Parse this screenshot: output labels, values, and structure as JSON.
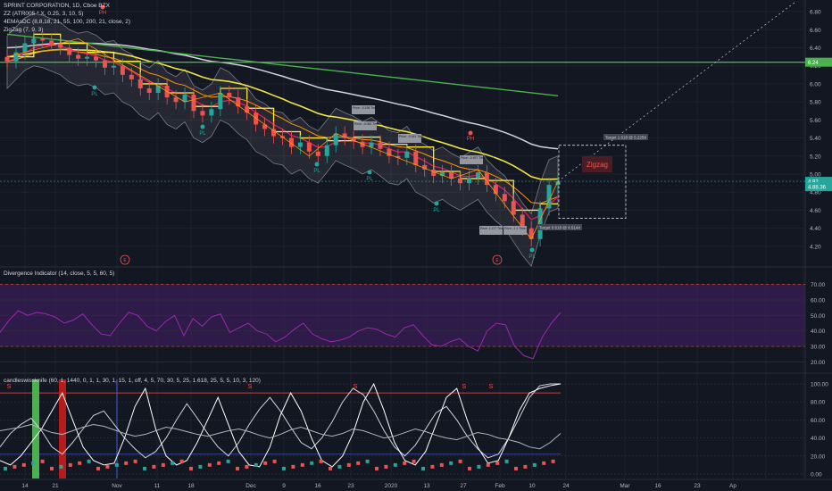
{
  "header": {
    "symbol_line": "SPRINT CORPORATION, 1D, Cboe BZX",
    "indicator_lines": [
      "ZZ (ATR005 * X, 0.25, 3, 10, 5)",
      "4EMAsDC (8,8,18, 21, 55, 100, 200, 21, close, 2)",
      "ZigZag (7, 9, 3)"
    ]
  },
  "divergence": {
    "title": "Divergence Indicator (14, close, 5, 5, 60, 5)"
  },
  "swiss": {
    "title": "candleswissknife (60, 1, 1440, 0, 1, 1, 30, 1, 15, 1, off, 4, 5, 70, 30, 5, 25, 1.618, 25, 5, 5, 10, 3, 120)"
  },
  "price_axis": [
    "6.80",
    "6.60",
    "6.40",
    "6.20",
    "6.00",
    "5.80",
    "5.60",
    "5.40",
    "5.20",
    "5.00",
    "4.80",
    "4.60",
    "4.40",
    "4.20"
  ],
  "price_tags": [
    {
      "label": "6.24",
      "color": "#4caf50"
    },
    {
      "label": "4.92",
      "color": "#26a69a"
    },
    {
      "label": "4.88.36",
      "color": "#26a69a"
    }
  ],
  "div_axis": [
    "70.00",
    "60.00",
    "50.00",
    "40.00",
    "30.00",
    "20.00"
  ],
  "swiss_axis": [
    "100.00",
    "80.00",
    "60.00",
    "40.00",
    "20.00",
    "0.00"
  ],
  "time_axis": [
    "14",
    "21",
    "Nov",
    "11",
    "18",
    "Dec",
    "9",
    "16",
    "23",
    "2020",
    "13",
    "27",
    "Feb",
    "10",
    "24",
    "Mar",
    "16",
    "23",
    "Ap"
  ],
  "labels": {
    "ph_markers": [
      "PH",
      "PH"
    ],
    "pl_markers": [
      "PL",
      "PL",
      "PL",
      "PL",
      "PL",
      "PL"
    ],
    "zigzag_box": "Zigzag",
    "target_top": "Target 1.618 @ 5.2259",
    "target_bottom": "Target 0.618 @ 4.5144",
    "event_markers": [
      "E",
      "E"
    ],
    "signal_s": [
      "S",
      "S",
      "S",
      "S",
      "S"
    ],
    "pivot_boxes": [
      "Price: -0.198 Time: -0.479",
      "Price: -0.083 Time: -1.83",
      "Price: -0.061 Time: -0.405",
      "Price: -0.497 Time: -1.64",
      "Price: 1.127 Time: -10",
      "Price: -1.1 Time: -8"
    ]
  },
  "colors": {
    "background": "#131722",
    "up": "#26a69a",
    "down": "#ef5350",
    "ema_yellow": "#f0e442",
    "ema_white": "#d1d4dc",
    "ema_green": "#4caf50",
    "zigzag_orange": "#ff9800",
    "divergence_line": "#9c27b0",
    "divergence_band": "#3b1e5a"
  },
  "chart_data": [
    {
      "type": "line",
      "title": "SPRINT CORPORATION, 1D, Cboe BZX",
      "note_series": "daily close (approx.)",
      "ylim": [
        4.1,
        6.85
      ],
      "series": [
        {
          "values": [
            6.25,
            6.35,
            6.45,
            6.5,
            6.48,
            6.44,
            6.4,
            6.32,
            6.28,
            6.3,
            6.26,
            6.18,
            6.2,
            6.1,
            6.05,
            5.95,
            5.9,
            5.98,
            5.85,
            5.8,
            5.88,
            5.7,
            5.65,
            5.72,
            5.9,
            5.85,
            5.75,
            5.68,
            5.55,
            5.5,
            5.42,
            5.4,
            5.3,
            5.35,
            5.25,
            5.2,
            5.32,
            5.45,
            5.4,
            5.36,
            5.3,
            5.35,
            5.28,
            5.2,
            5.18,
            5.25,
            5.1,
            5.05,
            4.98,
            5.02,
            4.95,
            4.9,
            4.96,
            5.02,
            4.88,
            4.78,
            4.7,
            4.55,
            4.4,
            4.28,
            4.62,
            4.88,
            4.92
          ]
        }
      ]
    },
    {
      "type": "line",
      "title": "Divergence Indicator (14, close, 5, 5, 60, 5)",
      "ylim": [
        15,
        75
      ],
      "series": [
        {
          "values": [
            39,
            47,
            53,
            50,
            52,
            51,
            49,
            45,
            47,
            51,
            44,
            38,
            37,
            45,
            52,
            50,
            43,
            40,
            46,
            50,
            37,
            48,
            43,
            49,
            51,
            39,
            42,
            45,
            40,
            38,
            33,
            36,
            41,
            45,
            38,
            35,
            33,
            34,
            36,
            40,
            42,
            41,
            38,
            36,
            42,
            44,
            37,
            31,
            30,
            33,
            35,
            30,
            27,
            40,
            45,
            44,
            30,
            24,
            22,
            36,
            45,
            52
          ]
        }
      ]
    },
    {
      "type": "line",
      "title": "candleswissknife",
      "ylim": [
        -5,
        105
      ],
      "series": [
        {
          "values": [
            30,
            45,
            55,
            62,
            48,
            30,
            22,
            35,
            50,
            65,
            70,
            55,
            40,
            28,
            18,
            25,
            40,
            60,
            78,
            62,
            45,
            30,
            20,
            35,
            55,
            72,
            85,
            70,
            52,
            35,
            28,
            40,
            58,
            80,
            95,
            88,
            70,
            48,
            30,
            20,
            32,
            50,
            68,
            75,
            60,
            42,
            28,
            18,
            22,
            40,
            62,
            85,
            98,
            100,
            100
          ]
        },
        {
          "values": [
            15,
            10,
            20,
            35,
            50,
            70,
            90,
            60,
            30,
            15,
            10,
            12,
            40,
            75,
            95,
            50,
            20,
            10,
            15,
            35,
            60,
            85,
            55,
            25,
            10,
            8,
            30,
            65,
            90,
            70,
            40,
            15,
            8,
            20,
            45,
            80,
            100,
            70,
            35,
            15,
            10,
            25,
            55,
            85,
            95,
            60,
            30,
            12,
            15,
            40,
            70,
            90,
            95,
            98,
            100
          ]
        },
        {
          "values": [
            48,
            50,
            52,
            55,
            50,
            46,
            44,
            48,
            52,
            55,
            53,
            49,
            45,
            42,
            44,
            48,
            52,
            50,
            47,
            44,
            42,
            45,
            48,
            50,
            47,
            43,
            40,
            44,
            49,
            52,
            48,
            44,
            42,
            45,
            50,
            48,
            44,
            40,
            42,
            46,
            50,
            47,
            43,
            40,
            38,
            42,
            46,
            44,
            40,
            38,
            35,
            30,
            28,
            35,
            45
          ]
        }
      ]
    }
  ]
}
